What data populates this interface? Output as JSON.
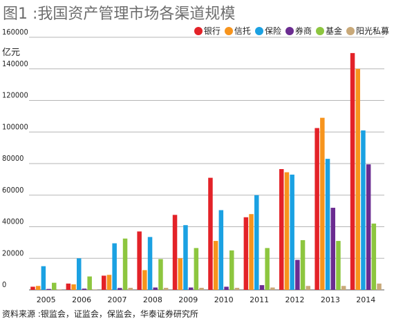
{
  "title": "图1 :我国资产管理市场各渠道规模",
  "unit_label": "亿元",
  "source": "资料来源 :银监会，证监会，保监会，华泰证券研究所",
  "chart_data": {
    "type": "bar",
    "title": "图1 :我国资产管理市场各渠道规模",
    "ylabel": "亿元",
    "xlabel": "",
    "ylim": [
      0,
      160000
    ],
    "yticks": [
      0,
      20000,
      40000,
      60000,
      80000,
      100000,
      120000,
      140000,
      160000
    ],
    "grid": true,
    "legend_position": "top-right",
    "categories": [
      "2005",
      "2006",
      "2007",
      "2008",
      "2009",
      "2010",
      "2011",
      "2012",
      "2013",
      "2014"
    ],
    "series": [
      {
        "name": "银行",
        "color": "#e32228",
        "values": [
          2000,
          4000,
          9000,
          37000,
          47500,
          71000,
          46000,
          76500,
          102500,
          150000
        ]
      },
      {
        "name": "信托",
        "color": "#f7941d",
        "values": [
          2500,
          3500,
          9500,
          12500,
          20000,
          31000,
          48000,
          74500,
          109000,
          140000
        ]
      },
      {
        "name": "保险",
        "color": "#1ba1e2",
        "values": [
          15000,
          20000,
          29500,
          33500,
          41000,
          50500,
          60000,
          73000,
          83000,
          101000
        ]
      },
      {
        "name": "券商",
        "color": "#6b2c91",
        "values": [
          600,
          800,
          1200,
          1500,
          1500,
          2000,
          3000,
          19000,
          52000,
          79500
        ]
      },
      {
        "name": "基金",
        "color": "#8dc63f",
        "values": [
          4500,
          8500,
          32500,
          19500,
          26500,
          25000,
          26500,
          31500,
          31000,
          42000
        ]
      },
      {
        "name": "阳光私募",
        "color": "#c9a979",
        "values": [
          300,
          300,
          1300,
          1300,
          1300,
          1300,
          1500,
          2500,
          2500,
          4000
        ]
      }
    ]
  }
}
